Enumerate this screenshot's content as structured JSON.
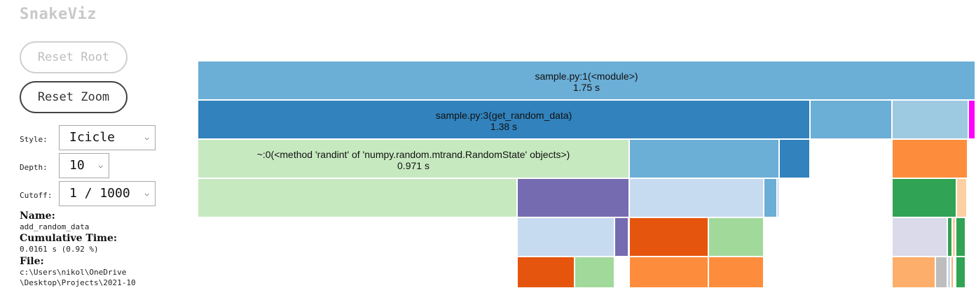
{
  "app": {
    "title": "SnakeViz"
  },
  "buttons": {
    "reset_root": "Reset Root",
    "reset_zoom": "Reset Zoom"
  },
  "controls": {
    "style_label": "Style:",
    "style_value": "Icicle",
    "depth_label": "Depth:",
    "depth_value": "10",
    "cutoff_label": "Cutoff:",
    "cutoff_value": "1 / 1000"
  },
  "info": {
    "name_label": "Name:",
    "name_value": "add_random_data",
    "cumtime_label": "Cumulative Time:",
    "cumtime_value": "0.0161 s (0.92 %)",
    "file_label": "File:",
    "file_line1": "c:\\Users\\nikol\\OneDrive",
    "file_line2": "\\Desktop\\Projects\\2021-10"
  },
  "icicle": {
    "nodes": [
      {
        "label": "sample.py:1(<module>)",
        "time": "1.75 s",
        "color": "#6baed6"
      },
      {
        "label": "sample.py:3(get_random_data)",
        "time": "1.38 s",
        "color": "#3182bd"
      },
      {
        "label": "~:0(<method 'randint' of 'numpy.random.mtrand.RandomState' objects>)",
        "time": "0.971 s",
        "color": "#c7e9c0"
      }
    ],
    "colors": {
      "blue_light": "#6baed6",
      "blue": "#3182bd",
      "blue_pale": "#9ecae1",
      "blue_faint": "#c6dbef",
      "green_pale": "#c7e9c0",
      "green_mid": "#a1d99b",
      "green": "#31a354",
      "orange_dark": "#e6550d",
      "orange": "#fd8d3c",
      "orange_light": "#fdae6b",
      "peach": "#fdd0a2",
      "purple": "#756bb1",
      "purple_pale": "#dadaeb",
      "magenta": "#ff00ff",
      "grey": "#bdbdbd"
    }
  }
}
